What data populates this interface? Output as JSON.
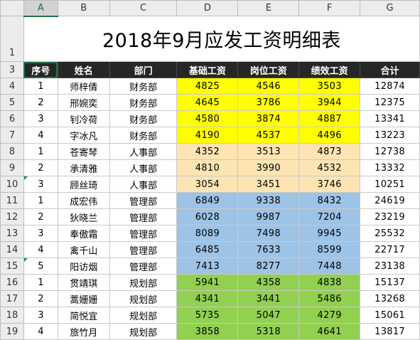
{
  "columns": [
    "A",
    "B",
    "C",
    "D",
    "E",
    "F",
    "G"
  ],
  "selected_column": "A",
  "title_row_number": "1",
  "title": "2018年9月应发工资明细表",
  "header_row_number": "3",
  "headers": [
    "序号",
    "姓名",
    "部门",
    "基础工资",
    "岗位工资",
    "绩效工资",
    "合计"
  ],
  "rows": [
    {
      "row": "4",
      "seq": "1",
      "name": "师梓倩",
      "dept": "财务部",
      "base": "4825",
      "post": "4546",
      "perf": "3503",
      "total": "12874"
    },
    {
      "row": "5",
      "seq": "2",
      "name": "邢婉奕",
      "dept": "财务部",
      "base": "4645",
      "post": "3786",
      "perf": "3944",
      "total": "12375"
    },
    {
      "row": "6",
      "seq": "3",
      "name": "钊冷荷",
      "dept": "财务部",
      "base": "4580",
      "post": "3874",
      "perf": "4887",
      "total": "13341"
    },
    {
      "row": "7",
      "seq": "4",
      "name": "字冰凡",
      "dept": "财务部",
      "base": "4190",
      "post": "4537",
      "perf": "4496",
      "total": "13223"
    },
    {
      "row": "8",
      "seq": "1",
      "name": "苍寄琴",
      "dept": "人事部",
      "base": "4352",
      "post": "3513",
      "perf": "4873",
      "total": "12738"
    },
    {
      "row": "9",
      "seq": "2",
      "name": "承清雅",
      "dept": "人事部",
      "base": "4810",
      "post": "3990",
      "perf": "4532",
      "total": "13332"
    },
    {
      "row": "10",
      "seq": "3",
      "name": "顾丝琦",
      "dept": "人事部",
      "base": "3054",
      "post": "3451",
      "perf": "3746",
      "total": "10251"
    },
    {
      "row": "11",
      "seq": "1",
      "name": "成宏伟",
      "dept": "管理部",
      "base": "6849",
      "post": "9338",
      "perf": "8432",
      "total": "24619"
    },
    {
      "row": "12",
      "seq": "2",
      "name": "狄晓兰",
      "dept": "管理部",
      "base": "6028",
      "post": "9987",
      "perf": "7204",
      "total": "23219"
    },
    {
      "row": "13",
      "seq": "3",
      "name": "奉傲霜",
      "dept": "管理部",
      "base": "8089",
      "post": "7498",
      "perf": "9945",
      "total": "25532"
    },
    {
      "row": "14",
      "seq": "4",
      "name": "禽千山",
      "dept": "管理部",
      "base": "6485",
      "post": "7633",
      "perf": "8599",
      "total": "22717"
    },
    {
      "row": "15",
      "seq": "5",
      "name": "阳访烟",
      "dept": "管理部",
      "base": "7413",
      "post": "8277",
      "perf": "7448",
      "total": "23138"
    },
    {
      "row": "16",
      "seq": "1",
      "name": "贯靖琪",
      "dept": "规划部",
      "base": "5941",
      "post": "4358",
      "perf": "4838",
      "total": "15137"
    },
    {
      "row": "17",
      "seq": "2",
      "name": "蒿姗姗",
      "dept": "规划部",
      "base": "4341",
      "post": "3441",
      "perf": "5486",
      "total": "13268"
    },
    {
      "row": "18",
      "seq": "3",
      "name": "简悦宜",
      "dept": "规划部",
      "base": "5735",
      "post": "5047",
      "perf": "4279",
      "total": "15061"
    },
    {
      "row": "19",
      "seq": "4",
      "name": "旅竹月",
      "dept": "规划部",
      "base": "3858",
      "post": "5318",
      "perf": "4641",
      "total": "13817"
    }
  ],
  "dept_colors": {
    "财务部": "#ffff00",
    "人事部": "#fde4b3",
    "管理部": "#9dc3e6",
    "规划部": "#92d050"
  },
  "header_bar_color": "#262626",
  "accent_color": "#217346"
}
